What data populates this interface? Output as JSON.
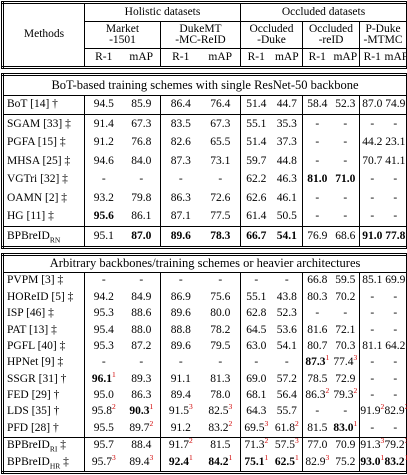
{
  "header": {
    "methods": "Methods",
    "groups": [
      {
        "title": "Holistic datasets",
        "datasets": [
          [
            "Market",
            "-1501"
          ],
          [
            "DukeMT",
            "-MC-ReID"
          ]
        ]
      },
      {
        "title": "Occluded datasets",
        "datasets": [
          [
            "Occluded",
            "-Duke"
          ],
          [
            "Occluded",
            "-reID"
          ],
          [
            "P-Duke",
            "-MTMC"
          ]
        ]
      }
    ],
    "metrics": [
      "R-1",
      "mAP"
    ]
  },
  "sections": [
    {
      "title": "BoT-based training schemes with single ResNet-50 backbone",
      "rows": [
        {
          "method": "BoT [14] †",
          "cells": [
            "94.5",
            "85.9",
            "86.4",
            "76.4",
            "51.4",
            "44.7",
            "58.4",
            "52.3",
            "87.0",
            "74.9"
          ]
        },
        {
          "method": "SGAM [33] ‡",
          "cells": [
            "91.4",
            "67.3",
            "83.5",
            "67.3",
            "55.1",
            "35.3",
            "-",
            "-",
            "-",
            "-"
          ]
        },
        {
          "method": "PGFA [15] ‡",
          "cells": [
            "91.2",
            "76.8",
            "82.6",
            "65.5",
            "51.4",
            "37.3",
            "-",
            "-",
            "44.2",
            "23.1"
          ]
        },
        {
          "method": "MHSA [25] ‡",
          "cells": [
            "94.6",
            "84.0",
            "87.3",
            "73.1",
            "59.7",
            "44.8",
            "-",
            "-",
            "70.7",
            "41.1"
          ]
        },
        {
          "method": "VGTri [32] ‡",
          "cells": [
            "-",
            "-",
            "-",
            "-",
            "62.2",
            "46.3",
            {
              "text": "81.0",
              "bold": true
            },
            {
              "text": "71.0",
              "bold": true
            },
            "-",
            "-"
          ]
        },
        {
          "method": "OAMN [2] ‡",
          "cells": [
            "93.2",
            "79.8",
            "86.3",
            "72.6",
            "62.6",
            "46.1",
            "-",
            "-",
            "-",
            "-"
          ]
        },
        {
          "method": "HG [11] ‡",
          "cells": [
            {
              "text": "95.6",
              "bold": true
            },
            "86.1",
            "87.1",
            "77.5",
            "61.4",
            "50.5",
            "-",
            "-",
            "-",
            "-"
          ]
        },
        {
          "method": {
            "text": "BPBreID",
            "sub": "RN"
          },
          "cells": [
            "95.1",
            {
              "text": "87.0",
              "bold": true
            },
            {
              "text": "89.6",
              "bold": true
            },
            {
              "text": "78.3",
              "bold": true
            },
            {
              "text": "66.7",
              "bold": true
            },
            {
              "text": "54.1",
              "bold": true
            },
            "76.9",
            "68.6",
            {
              "text": "91.0",
              "bold": true
            },
            {
              "text": "77.8",
              "bold": true
            }
          ]
        }
      ]
    },
    {
      "title": "Arbitrary backbones/training schemes or heavier architectures",
      "rows": [
        {
          "method": "PVPM [3] ‡",
          "cells": [
            "-",
            "-",
            "-",
            "-",
            "-",
            "-",
            "66.8",
            "59.5",
            "85.1",
            "69.9"
          ]
        },
        {
          "method": "HOReID [5] ‡",
          "cells": [
            "94.2",
            "84.9",
            "86.9",
            "75.6",
            "55.1",
            "43.8",
            "80.3",
            "70.2",
            "-",
            "-"
          ]
        },
        {
          "method": "ISP [46] ‡",
          "cells": [
            "95.3",
            "88.6",
            "89.6",
            "80.0",
            "62.8",
            "52.3",
            "-",
            "-",
            "-",
            "-"
          ]
        },
        {
          "method": "PAT [13] ‡",
          "cells": [
            "95.4",
            "88.0",
            "88.8",
            "78.2",
            "64.5",
            "53.6",
            "81.6",
            "72.1",
            "-",
            "-"
          ]
        },
        {
          "method": "PGFL [40] ‡",
          "cells": [
            "95.3",
            "87.2",
            "89.6",
            "79.5",
            "63.0",
            "54.1",
            "80.7",
            "70.3",
            "81.1",
            "64.2"
          ]
        },
        {
          "method": "HPNet [9] ‡",
          "cells": [
            "-",
            "-",
            "-",
            "-",
            "-",
            "-",
            {
              "text": "87.3",
              "bold": true,
              "sup": "1"
            },
            {
              "text": "77.4",
              "sup": "3"
            },
            "-",
            "-"
          ]
        },
        {
          "method": "SSGR [31] †",
          "cells": [
            {
              "text": "96.1",
              "bold": true,
              "sup": "1"
            },
            "89.3",
            "91.1",
            "81.3",
            "69.0",
            "57.2",
            "78.5",
            "72.9",
            "-",
            "-"
          ]
        },
        {
          "method": "FED [29] †",
          "cells": [
            "95.0",
            "86.3",
            "89.4",
            "78.0",
            "68.1",
            "56.4",
            {
              "text": "86.3",
              "sup": "2"
            },
            {
              "text": "79.3",
              "sup": "2"
            },
            "-",
            "-"
          ]
        },
        {
          "method": "LDS [35] †",
          "cells": [
            {
              "text": "95.8",
              "sup": "2"
            },
            {
              "text": "90.3",
              "bold": true,
              "sup": "1"
            },
            {
              "text": "91.5",
              "sup": "3"
            },
            {
              "text": "82.5",
              "sup": "3"
            },
            "64.3",
            "55.7",
            "-",
            "-",
            {
              "text": "91.9",
              "sup": "2"
            },
            {
              "text": "82.9",
              "sup": "2"
            }
          ]
        },
        {
          "method": "PFD [28] †",
          "cells": [
            "95.5",
            {
              "text": "89.7",
              "sup": "2"
            },
            "91.2",
            {
              "text": "83.2",
              "sup": "2"
            },
            {
              "text": "69.5",
              "sup": "3"
            },
            {
              "text": "61.8",
              "sup": "2"
            },
            "81.5",
            {
              "text": "83.0",
              "bold": true,
              "sup": "1"
            },
            "-",
            "-"
          ]
        },
        {
          "method": {
            "text": "BPBreID",
            "sub": "RI",
            "suffix": "‡"
          },
          "cells": [
            "95.7",
            "88.4",
            {
              "text": "91.7",
              "sup": "2"
            },
            "81.5",
            {
              "text": "71.3",
              "sup": "2"
            },
            {
              "text": "57.5",
              "sup": "3"
            },
            "77.0",
            "70.9",
            {
              "text": "91.3",
              "sup": "3"
            },
            {
              "text": "79.2",
              "sup": "3"
            }
          ]
        },
        {
          "method": {
            "text": "BPBreID",
            "sub": "HR",
            "suffix": "‡"
          },
          "cells": [
            {
              "text": "95.7",
              "sup": "3"
            },
            {
              "text": "89.4",
              "sup": "3"
            },
            {
              "text": "92.4",
              "bold": true,
              "sup": "1"
            },
            {
              "text": "84.2",
              "bold": true,
              "sup": "1"
            },
            {
              "text": "75.1",
              "bold": true,
              "sup": "1"
            },
            {
              "text": "62.5",
              "bold": true,
              "sup": "1"
            },
            {
              "text": "82.9",
              "sup": "3"
            },
            "75.2",
            {
              "text": "93.0",
              "bold": true,
              "sup": "1"
            },
            {
              "text": "83.2",
              "bold": true,
              "sup": "1"
            }
          ]
        }
      ]
    }
  ]
}
